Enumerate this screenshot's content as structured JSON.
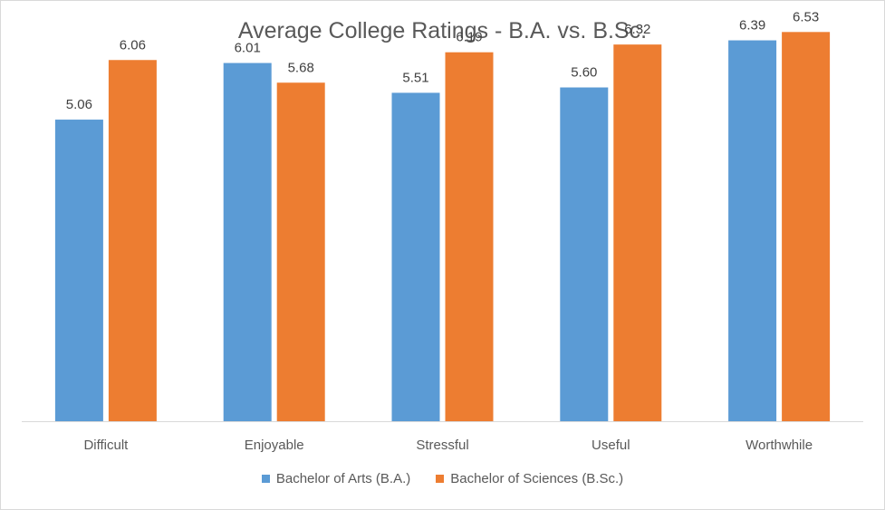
{
  "chart_data": {
    "type": "bar",
    "title": "Average College Ratings - B.A. vs. B.Sc.",
    "categories": [
      "Difficult",
      "Enjoyable",
      "Stressful",
      "Useful",
      "Worthwhile"
    ],
    "series": [
      {
        "name": "Bachelor of Arts (B.A.)",
        "color": "#5b9bd5",
        "values": [
          5.06,
          6.01,
          5.51,
          5.6,
          6.39
        ],
        "labels": [
          "5.06",
          "6.01",
          "5.51",
          "5.60",
          "6.39"
        ]
      },
      {
        "name": "Bachelor of Sciences (B.Sc.)",
        "color": "#ed7d31",
        "values": [
          6.06,
          5.68,
          6.19,
          6.32,
          6.53
        ],
        "labels": [
          "6.06",
          "5.68",
          "6.19",
          "6.32",
          "6.53"
        ]
      }
    ],
    "xlabel": "",
    "ylabel": "",
    "ylim": [
      0,
      7
    ],
    "grid": false,
    "legend_position": "bottom"
  },
  "legend": {
    "ba_label": "Bachelor of Arts (B.A.)",
    "bsc_label": "Bachelor of Sciences (B.Sc.)"
  }
}
